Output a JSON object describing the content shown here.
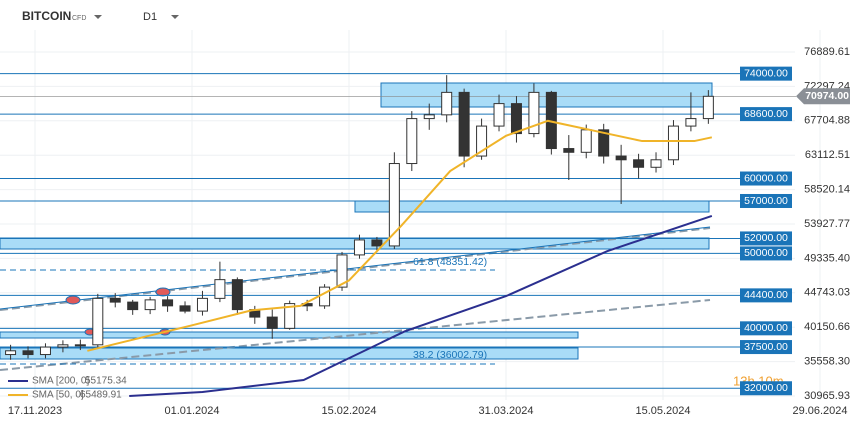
{
  "header": {
    "symbol": "BITCOIN",
    "market": "CFD",
    "timeframe": "D1"
  },
  "chart_data": {
    "type": "candlestick",
    "x": [
      "10.11.2023",
      "15.11.2023",
      "20.11.2023",
      "25.11.2023",
      "30.11.2023",
      "05.12.2023",
      "10.12.2023",
      "15.12.2023",
      "20.12.2023",
      "25.12.2023",
      "30.12.2023",
      "04.01.2024",
      "09.01.2024",
      "14.01.2024",
      "19.01.2024",
      "24.01.2024",
      "29.01.2024",
      "03.02.2024",
      "08.02.2024",
      "13.02.2024",
      "18.02.2024",
      "23.02.2024",
      "28.02.2024",
      "04.03.2024",
      "09.03.2024",
      "14.03.2024",
      "19.03.2024",
      "24.03.2024",
      "29.03.2024",
      "03.04.2024",
      "08.04.2024",
      "13.04.2024",
      "18.04.2024",
      "23.04.2024",
      "28.04.2024",
      "03.05.2024",
      "08.05.2024",
      "13.05.2024",
      "18.05.2024",
      "23.05.2024",
      "28.05.2024"
    ],
    "open": [
      36500,
      37000,
      36500,
      37500,
      37800,
      37800,
      44000,
      43500,
      42500,
      43800,
      43000,
      42300,
      44000,
      46500,
      42500,
      41500,
      40000,
      43300,
      43000,
      45500,
      49800,
      51800,
      51000,
      62000,
      68000,
      68500,
      71500,
      63000,
      67000,
      70000,
      66000,
      71500,
      64000,
      63500,
      66500,
      63000,
      62500,
      61500,
      62500,
      67000,
      68000
    ],
    "high": [
      37800,
      37600,
      38000,
      38400,
      38500,
      44600,
      44700,
      43800,
      44200,
      44300,
      43600,
      45000,
      48900,
      46800,
      43000,
      42500,
      43700,
      43800,
      45900,
      50200,
      52500,
      52200,
      63500,
      69000,
      70000,
      73800,
      72000,
      68000,
      71200,
      71000,
      72700,
      71700,
      65800,
      67200,
      67300,
      64500,
      63300,
      63500,
      67800,
      71500,
      71800
    ],
    "low": [
      35800,
      36000,
      36000,
      36800,
      37100,
      37300,
      42800,
      41800,
      41900,
      42200,
      42000,
      41700,
      43500,
      41800,
      40600,
      38600,
      39800,
      42300,
      42600,
      45000,
      49300,
      50400,
      50600,
      61000,
      66500,
      67500,
      61500,
      62500,
      66300,
      64800,
      65500,
      63200,
      59800,
      62700,
      62000,
      56600,
      60000,
      60800,
      61800,
      66300,
      67300
    ],
    "close": [
      37000,
      36500,
      37500,
      37800,
      37800,
      44000,
      43500,
      42500,
      43800,
      43000,
      42300,
      44000,
      46500,
      42500,
      41500,
      40000,
      43300,
      43000,
      45500,
      49800,
      51800,
      51000,
      62000,
      68000,
      68500,
      71500,
      63000,
      67000,
      70000,
      66000,
      71500,
      64000,
      63500,
      66500,
      63000,
      62500,
      61500,
      62500,
      67000,
      68000,
      70974
    ],
    "series": [
      {
        "name": "SMA [50, 0]",
        "last": "65489.91",
        "color": "#f0b429",
        "x": [
          "02.12.2023",
          "01.01.2024",
          "18.01.2024",
          "01.02.2024",
          "15.02.2024",
          "01.03.2024",
          "15.03.2024",
          "31.03.2024",
          "12.04.2024",
          "25.04.2024",
          "09.05.2024",
          "24.05.2024",
          "29.05.2024"
        ],
        "values": [
          37000,
          40400,
          42400,
          43000,
          46400,
          53700,
          61000,
          65700,
          67700,
          66400,
          65000,
          65000,
          65500
        ]
      },
      {
        "name": "SMA [200, 0]",
        "last": "55175.34",
        "color": "#2b2f8f",
        "x": [
          "14.12.2023",
          "04.01.2024",
          "02.02.2024",
          "02.03.2024",
          "31.03.2024",
          "29.04.2024",
          "29.05.2024"
        ],
        "values": [
          30965,
          31500,
          33100,
          39600,
          44300,
          50300,
          55000
        ]
      }
    ],
    "levels": [
      {
        "value": 74000,
        "label": "74000.00"
      },
      {
        "value": 68600,
        "label": "68600.00"
      },
      {
        "value": 60000,
        "label": "60000.00"
      },
      {
        "value": 57000,
        "label": "57000.00"
      },
      {
        "value": 52000,
        "label": "52000.00"
      },
      {
        "value": 50000,
        "label": "50000.00"
      },
      {
        "value": 44400,
        "label": "44400.00"
      },
      {
        "value": 40000,
        "label": "40000.00"
      },
      {
        "value": 37500,
        "label": "37500.00"
      },
      {
        "value": 32000,
        "label": "32000.00"
      }
    ],
    "current_price": {
      "value": 70974,
      "label": "70974.00"
    },
    "fib_labels": [
      "61.8 (48351.42)",
      "38.2 (36002.79)"
    ],
    "countdown": "13h 10m",
    "ylim": [
      30965.93,
      76889.61
    ],
    "yticks": [
      76889.61,
      72297.24,
      67704.88,
      63112.51,
      58520.14,
      53927.77,
      {
        "value": 49335.4,
        "label": "49335.40"
      },
      44743.03,
      40150.66,
      {
        "value": 35558.3,
        "label": "35558.30"
      },
      30965.93
    ],
    "xticks": [
      "17.11.2023",
      "01.01.2024",
      "15.02.2024",
      "31.03.2024",
      "15.05.2024",
      "29.06.2024"
    ]
  }
}
